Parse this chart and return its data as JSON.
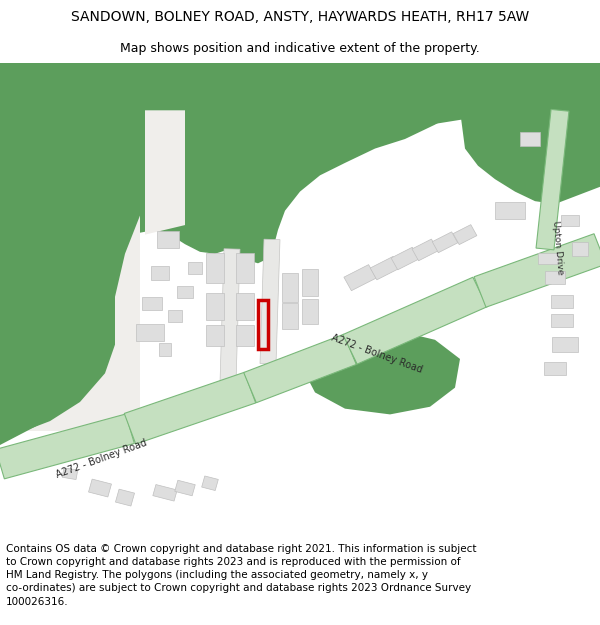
{
  "title": "SANDOWN, BOLNEY ROAD, ANSTY, HAYWARDS HEATH, RH17 5AW",
  "subtitle": "Map shows position and indicative extent of the property.",
  "footer": "Contains OS data © Crown copyright and database right 2021. This information is subject\nto Crown copyright and database rights 2023 and is reproduced with the permission of\nHM Land Registry. The polygons (including the associated geometry, namely x, y\nco-ordinates) are subject to Crown copyright and database rights 2023 Ordnance Survey\n100026316.",
  "bg_color": "#ffffff",
  "map_bg": "#f0eeeb",
  "green_dark": "#5c9e5c",
  "green_road": "#c5e0c0",
  "green_road_edge": "#7ab87a",
  "building_color": "#dedede",
  "building_edge": "#c0c0c0",
  "red_plot": "#cc0000",
  "title_fontsize": 10,
  "subtitle_fontsize": 9,
  "footer_fontsize": 7.5
}
